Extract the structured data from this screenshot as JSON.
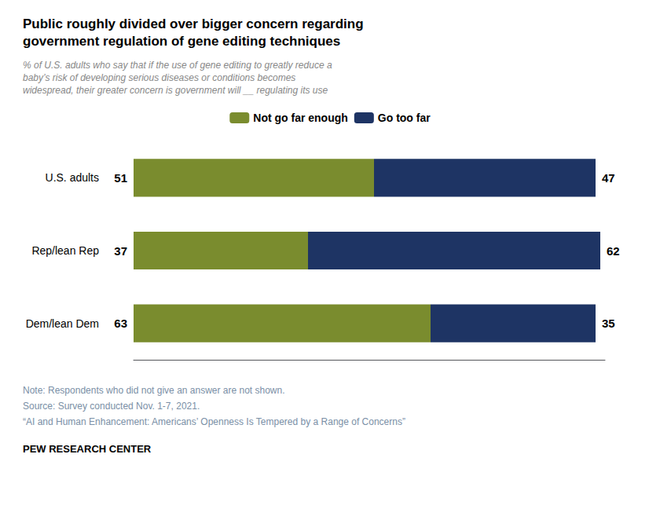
{
  "chart_data": {
    "type": "bar",
    "orientation": "horizontal",
    "stacked": true,
    "title": "Public roughly divided over bigger concern regarding\ngovernment regulation of gene editing techniques",
    "subtitle": "% of U.S. adults who say that if the use of gene editing to greatly reduce a\nbaby’s risk of developing serious diseases or conditions becomes\nwidespread, their greater concern is government will __ regulating its use",
    "categories": [
      "U.S. adults",
      "Rep/lean Rep",
      "Dem/lean Dem"
    ],
    "series": [
      {
        "name": "Not go far enough",
        "color": "#7a8c2e",
        "values": [
          51,
          37,
          63
        ]
      },
      {
        "name": "Go too far",
        "color": "#1e3464",
        "values": [
          47,
          62,
          35
        ]
      }
    ],
    "xlim": [
      0,
      100
    ],
    "data_labels": true,
    "tick_labels": "y",
    "grid": false,
    "legend": "top",
    "annotations": [
      "Note: Respondents who did not give an answer are not shown.",
      "Source: Survey conducted Nov. 1-7, 2021.",
      "“AI and Human Enhancement: Americans’ Openness Is Tempered by a Range of Concerns”",
      "PEW RESEARCH CENTER"
    ]
  }
}
